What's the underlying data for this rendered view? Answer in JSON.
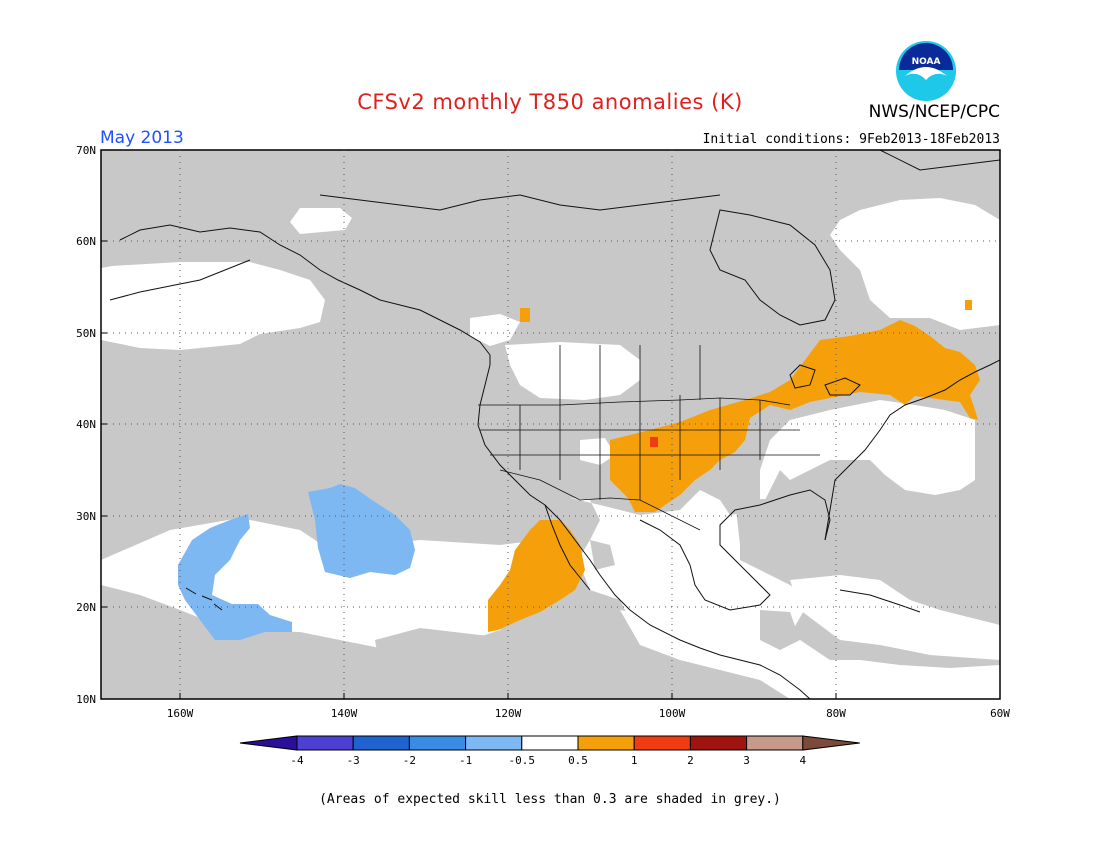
{
  "title": "CFSv2 monthly T850 anomalies (K)",
  "agency": "NWS/NCEP/CPC",
  "period": "May 2013",
  "initial_conditions": "Initial conditions: 9Feb2013-18Feb2013",
  "logo_text": "NOAA",
  "map": {
    "lon_labels": [
      "160W",
      "140W",
      "120W",
      "100W",
      "80W",
      "60W"
    ],
    "lat_labels": [
      "70N",
      "60N",
      "50N",
      "40N",
      "30N",
      "20N",
      "10N"
    ],
    "grey_note": "(Areas of expected skill less than 0.3 are shaded in grey.)"
  },
  "colorbar": {
    "tick_labels": [
      "-4",
      "-3",
      "-2",
      "-1",
      "-0.5",
      "0.5",
      "1",
      "2",
      "3",
      "4"
    ],
    "colors": [
      "#2a0f9a",
      "#4c3fd2",
      "#1e63d0",
      "#3a8be4",
      "#7db8f2",
      "#ffffff",
      "#f5a00a",
      "#f03c10",
      "#a0140f",
      "#c6998a",
      "#7b4a3a"
    ]
  },
  "colors": {
    "grey": "#c8c8c8",
    "ocean_white": "#ffffff",
    "title_red": "#e0201e",
    "period_blue": "#2050ff"
  }
}
